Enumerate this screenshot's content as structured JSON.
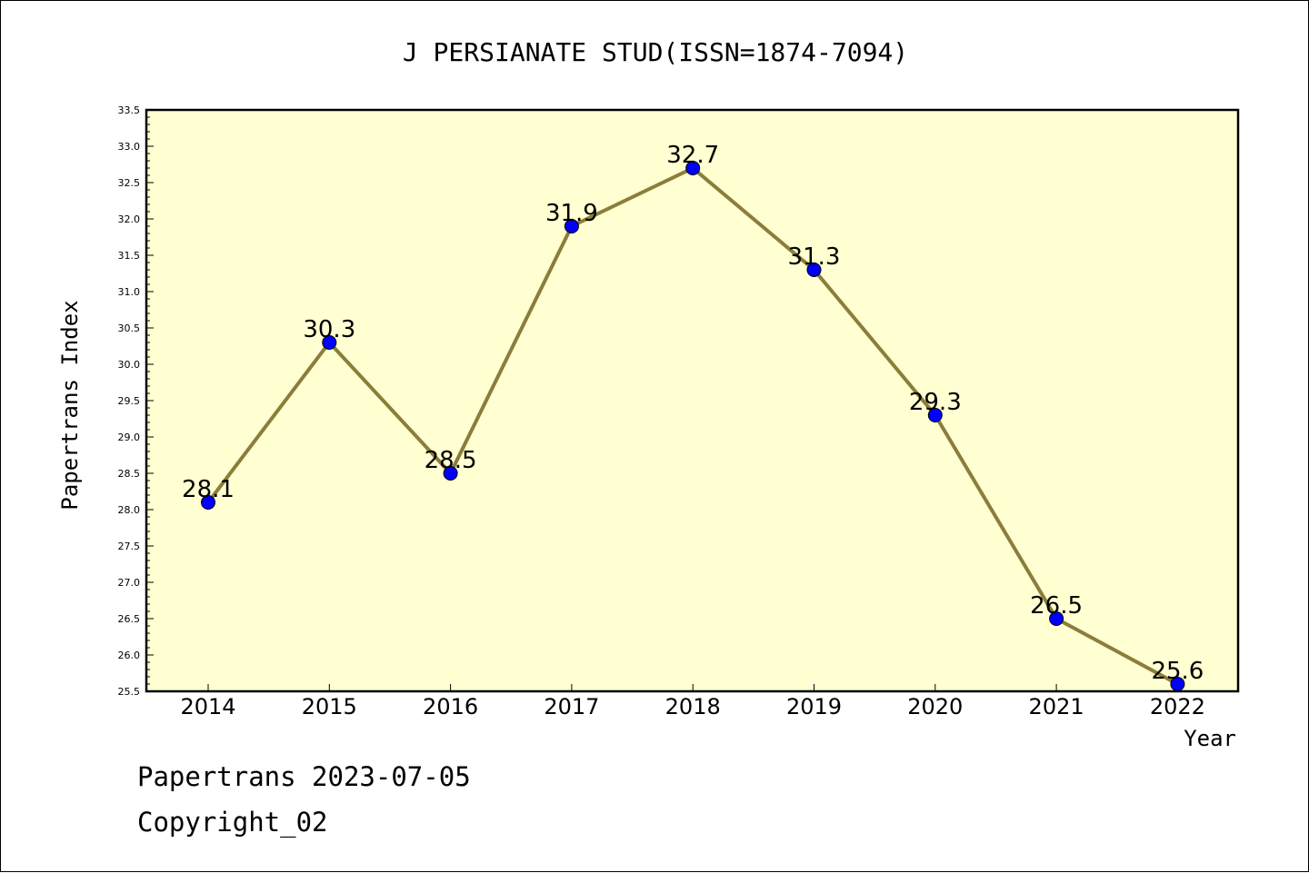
{
  "chart_data": {
    "type": "line",
    "title": "J PERSIANATE STUD(ISSN=1874-7094)",
    "xlabel": "Year",
    "ylabel": "Papertrans Index",
    "categories": [
      "2014",
      "2015",
      "2016",
      "2017",
      "2018",
      "2019",
      "2020",
      "2021",
      "2022"
    ],
    "series": [
      {
        "values": [
          28.1,
          30.3,
          28.5,
          31.9,
          32.7,
          31.3,
          29.3,
          26.5,
          25.6
        ],
        "data_labels": [
          "28.1",
          "30.3",
          "28.5",
          "31.9",
          "32.7",
          "31.3",
          "29.3",
          "26.5",
          "25.6"
        ]
      }
    ],
    "ylim": [
      25.5,
      33.5
    ],
    "yticks": [
      "25.5",
      "26.0",
      "26.5",
      "27.0",
      "27.5",
      "28.0",
      "28.5",
      "29.0",
      "29.5",
      "30.0",
      "30.5",
      "31.0",
      "31.5",
      "32.0",
      "32.5",
      "33.0",
      "33.5"
    ],
    "grid": false,
    "line_color": "#8b7d3a",
    "marker_color": "#0000ff",
    "plot_background": "#ffffd2"
  },
  "footer": {
    "date_line": "Papertrans 2023-07-05",
    "copyright": "Copyright_02"
  }
}
